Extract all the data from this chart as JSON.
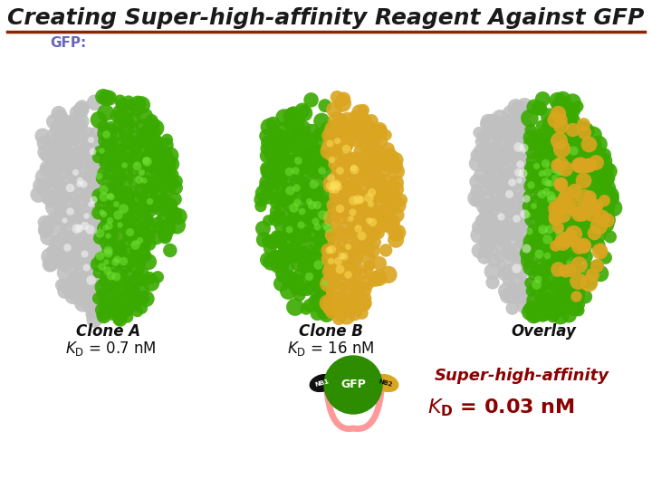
{
  "title": "Creating Super-high-affinity Reagent Against GFP",
  "title_color": "#1a1a1a",
  "title_underline_color": "#8B2500",
  "gfp_label": "GFP:",
  "gfp_label_color": "#6666bb",
  "clone_a_label": "Clone A",
  "clone_b_label": "Clone B",
  "overlay_label": "Overlay",
  "super_label": "Super-high-affinity",
  "dark_red": "#8B0000",
  "background": "#ffffff",
  "green": "#3aaa00",
  "gray": "#c0c0c0",
  "gold": "#DAA520",
  "gfp_circle_color": "#2d8c00",
  "linker_color": "#ff9999",
  "black_nb": "#111111"
}
